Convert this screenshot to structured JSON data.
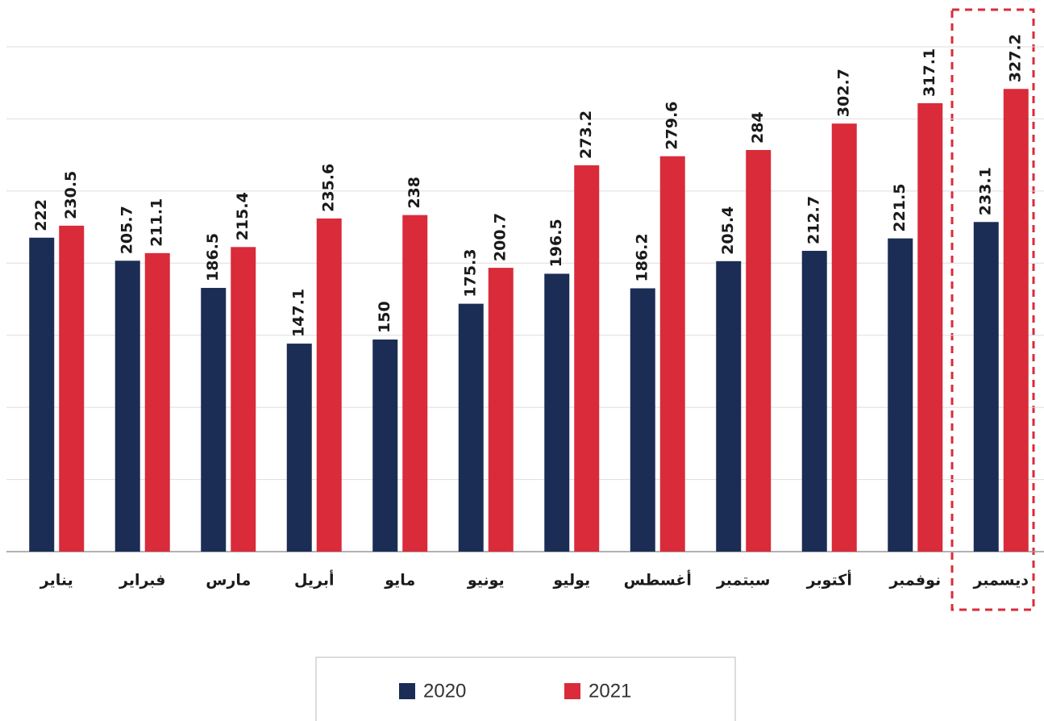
{
  "chart_data": {
    "type": "bar",
    "categories": [
      "يناير",
      "فبراير",
      "مارس",
      "أبريل",
      "مايو",
      "يونيو",
      "يوليو",
      "أغسطس",
      "سبتمبر",
      "أكتوبر",
      "نوفمبر",
      "ديسمبر"
    ],
    "series": [
      {
        "name": "2020",
        "color": "#1b2d55",
        "values": [
          222,
          205.7,
          186.5,
          147.1,
          150,
          175.3,
          196.5,
          186.2,
          205.4,
          212.7,
          221.5,
          233.1
        ]
      },
      {
        "name": "2021",
        "color": "#d92b3a",
        "values": [
          230.5,
          211.1,
          215.4,
          235.6,
          238,
          200.7,
          273.2,
          279.6,
          284,
          302.7,
          317.1,
          327.2
        ]
      }
    ],
    "ylim": [
      0,
      357
    ],
    "yticks": [
      0,
      51,
      102,
      153,
      204,
      255,
      306,
      357
    ],
    "grid": true
  }
}
